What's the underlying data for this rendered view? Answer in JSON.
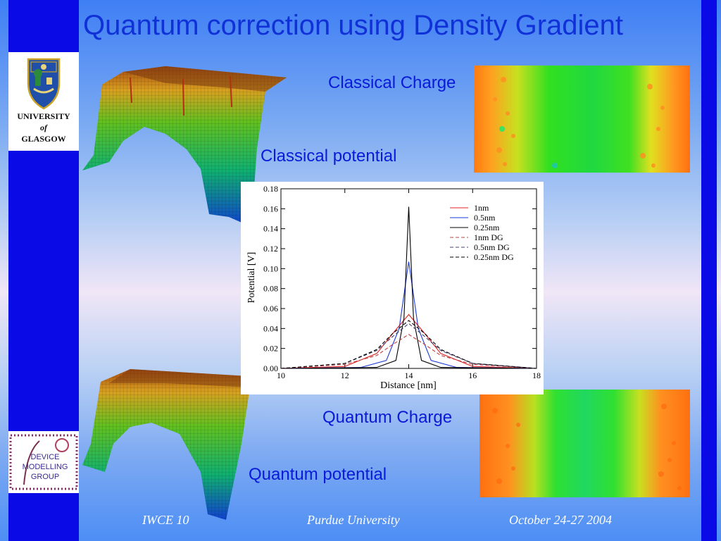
{
  "title": "Quantum correction using Density Gradient",
  "labels": {
    "classical_charge": "Classical Charge",
    "classical_potential": "Classical potential",
    "quantum_charge": "Quantum Charge",
    "quantum_potential": "Quantum potential"
  },
  "logo": {
    "university_line1": "UNIVERSITY",
    "university_line2": "of",
    "university_line3": "GLASGOW",
    "group_text": "DEVICE MODELLING GROUP"
  },
  "footer": {
    "left": "IWCE 10",
    "center": "Purdue University",
    "right": "October 24-27 2004"
  },
  "chart_data": {
    "type": "line",
    "xlabel": "Distance [nm]",
    "ylabel": "Potential [V]",
    "xlim": [
      10,
      18
    ],
    "ylim": [
      0,
      0.18
    ],
    "xticks": [
      10,
      12,
      14,
      16,
      18
    ],
    "yticks": [
      0.0,
      0.02,
      0.04,
      0.06,
      0.08,
      0.1,
      0.12,
      0.14,
      0.16,
      0.18
    ],
    "legend_position": "top-right",
    "series": [
      {
        "name": "1nm",
        "color": "#e02020",
        "dash": "solid",
        "x": [
          10,
          12,
          13,
          13.5,
          14,
          14.5,
          15,
          16,
          18
        ],
        "y": [
          0,
          0.002,
          0.015,
          0.035,
          0.054,
          0.035,
          0.015,
          0.002,
          0
        ]
      },
      {
        "name": "0.5nm",
        "color": "#1a3ad8",
        "dash": "solid",
        "x": [
          10,
          12.5,
          13.3,
          13.7,
          14,
          14.3,
          14.7,
          15.5,
          18
        ],
        "y": [
          0,
          0.001,
          0.008,
          0.04,
          0.107,
          0.04,
          0.008,
          0.001,
          0
        ]
      },
      {
        "name": "0.25nm",
        "color": "#000000",
        "dash": "solid",
        "x": [
          10,
          13,
          13.6,
          13.85,
          14,
          14.15,
          14.4,
          15,
          18
        ],
        "y": [
          0,
          0.001,
          0.008,
          0.05,
          0.162,
          0.05,
          0.008,
          0.001,
          0
        ]
      },
      {
        "name": "1nm DG",
        "color": "#c04040",
        "dash": "dashed",
        "x": [
          10,
          12,
          13,
          13.5,
          14,
          14.5,
          15,
          16,
          18
        ],
        "y": [
          0,
          0.004,
          0.013,
          0.024,
          0.034,
          0.024,
          0.013,
          0.004,
          0
        ]
      },
      {
        "name": "0.5nm DG",
        "color": "#404070",
        "dash": "dashed",
        "x": [
          10,
          12,
          13,
          13.5,
          14,
          14.5,
          15,
          16,
          18
        ],
        "y": [
          0,
          0.005,
          0.018,
          0.032,
          0.045,
          0.032,
          0.018,
          0.005,
          0
        ]
      },
      {
        "name": "0.25nm DG",
        "color": "#000000",
        "dash": "dashed",
        "x": [
          10,
          12,
          13,
          13.5,
          14,
          14.5,
          15,
          16,
          18
        ],
        "y": [
          0,
          0.005,
          0.019,
          0.035,
          0.048,
          0.035,
          0.019,
          0.005,
          0
        ]
      }
    ]
  }
}
